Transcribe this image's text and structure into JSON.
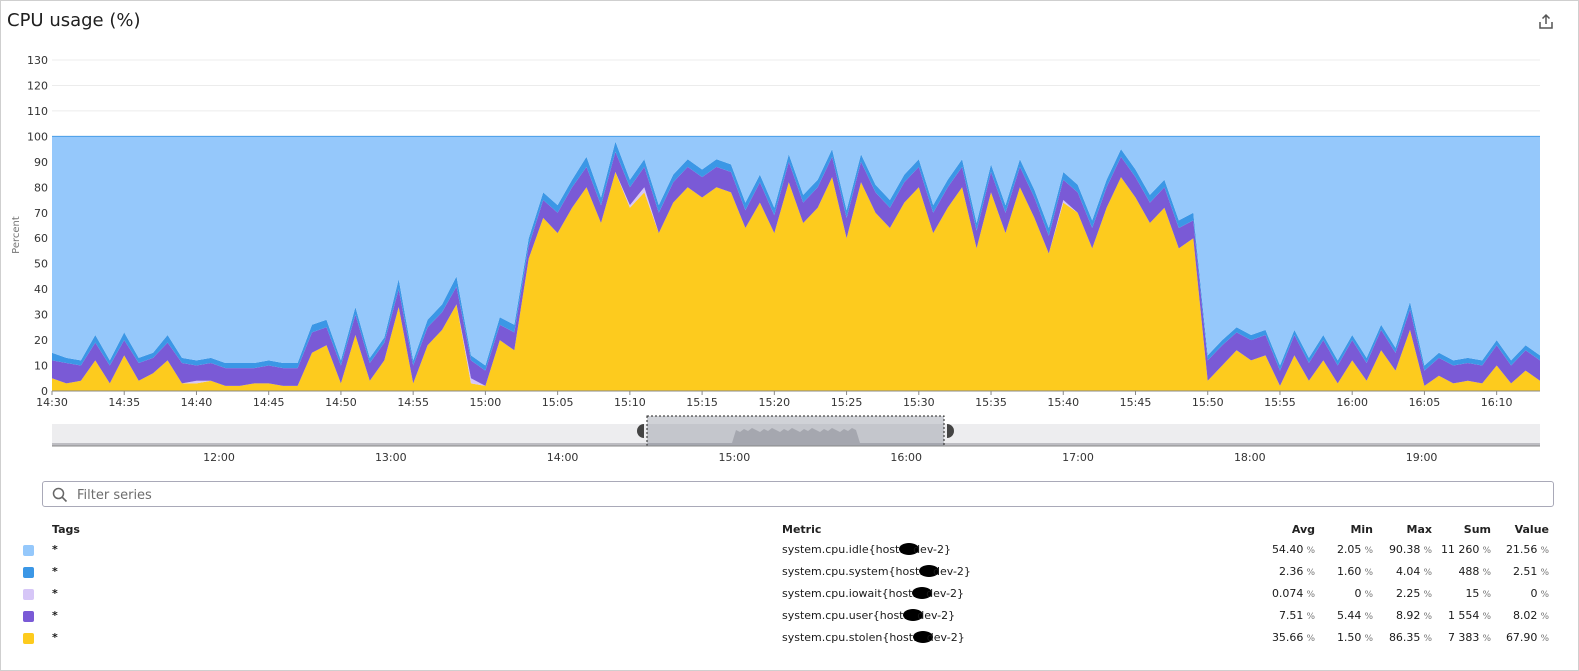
{
  "header": {
    "title": "CPU usage (%)",
    "export_icon": "export-icon"
  },
  "filter": {
    "placeholder": "Filter series",
    "value": ""
  },
  "legend": {
    "headers": {
      "tags": "Tags",
      "metric": "Metric",
      "avg": "Avg",
      "min": "Min",
      "max": "Max",
      "sum": "Sum",
      "value": "Value"
    },
    "unit": "%",
    "rows": [
      {
        "color": "#95c8fb",
        "tag": "*",
        "metric_prefix": "system.cpu.idle{host:",
        "metric_suffix": "dev-2}",
        "avg": "54.40",
        "min": "2.05",
        "max": "90.38",
        "sum": "11 260",
        "value": "21.56"
      },
      {
        "color": "#3b97e6",
        "tag": "*",
        "metric_prefix": "system.cpu.system{host:",
        "metric_suffix": "dev-2}",
        "avg": "2.36",
        "min": "1.60",
        "max": "4.04",
        "sum": "488",
        "value": "2.51"
      },
      {
        "color": "#d6c6f7",
        "tag": "*",
        "metric_prefix": "system.cpu.iowait{host:",
        "metric_suffix": "dev-2}",
        "avg": "0.074",
        "min": "0",
        "max": "2.25",
        "sum": "15",
        "value": "0"
      },
      {
        "color": "#7a5ad6",
        "tag": "*",
        "metric_prefix": "system.cpu.user{host:",
        "metric_suffix": "dev-2}",
        "avg": "7.51",
        "min": "5.44",
        "max": "8.92",
        "sum": "1 554",
        "value": "8.02"
      },
      {
        "color": "#fdcb1e",
        "tag": "*",
        "metric_prefix": "system.cpu.stolen{host:",
        "metric_suffix": "dev-2}",
        "avg": "35.66",
        "min": "1.50",
        "max": "86.35",
        "sum": "7 383",
        "value": "67.90"
      }
    ]
  },
  "navigator": {
    "tick_labels": [
      "12:00",
      "13:00",
      "14:00",
      "15:00",
      "16:00",
      "17:00",
      "18:00",
      "19:00"
    ]
  },
  "chart_data": {
    "type": "area",
    "stacked": true,
    "title": "CPU usage (%)",
    "ylabel": "Percent",
    "xlabel": "",
    "ylim": [
      0,
      130
    ],
    "yticks": [
      0,
      10,
      20,
      30,
      40,
      50,
      60,
      70,
      80,
      90,
      100,
      110,
      120,
      130
    ],
    "xlim": [
      "14:30",
      "16:13"
    ],
    "xtick_labels": [
      "14:30",
      "14:35",
      "14:40",
      "14:45",
      "14:50",
      "14:55",
      "15:00",
      "15:05",
      "15:10",
      "15:15",
      "15:20",
      "15:25",
      "15:30",
      "15:35",
      "15:40",
      "15:45",
      "15:50",
      "15:55",
      "16:00",
      "16:05",
      "16:10"
    ],
    "grid": true,
    "legend": "none",
    "x": [
      "14:30",
      "14:31",
      "14:32",
      "14:33",
      "14:34",
      "14:35",
      "14:36",
      "14:37",
      "14:38",
      "14:39",
      "14:40",
      "14:41",
      "14:42",
      "14:43",
      "14:44",
      "14:45",
      "14:46",
      "14:47",
      "14:48",
      "14:49",
      "14:50",
      "14:51",
      "14:52",
      "14:53",
      "14:54",
      "14:55",
      "14:56",
      "14:57",
      "14:58",
      "14:59",
      "15:00",
      "15:01",
      "15:02",
      "15:03",
      "15:04",
      "15:05",
      "15:06",
      "15:07",
      "15:08",
      "15:09",
      "15:10",
      "15:11",
      "15:12",
      "15:13",
      "15:14",
      "15:15",
      "15:16",
      "15:17",
      "15:18",
      "15:19",
      "15:20",
      "15:21",
      "15:22",
      "15:23",
      "15:24",
      "15:25",
      "15:26",
      "15:27",
      "15:28",
      "15:29",
      "15:30",
      "15:31",
      "15:32",
      "15:33",
      "15:34",
      "15:35",
      "15:36",
      "15:37",
      "15:38",
      "15:39",
      "15:40",
      "15:41",
      "15:42",
      "15:43",
      "15:44",
      "15:45",
      "15:46",
      "15:47",
      "15:48",
      "15:49",
      "15:50",
      "15:51",
      "15:52",
      "15:53",
      "15:54",
      "15:55",
      "15:56",
      "15:57",
      "15:58",
      "15:59",
      "16:00",
      "16:01",
      "16:02",
      "16:03",
      "16:04",
      "16:05",
      "16:06",
      "16:07",
      "16:08",
      "16:09",
      "16:10",
      "16:11",
      "16:12",
      "16:13"
    ],
    "series": [
      {
        "name": "system.cpu.stolen",
        "color": "#fdcb1e",
        "values": [
          5,
          3,
          4,
          12,
          3,
          14,
          4,
          7,
          12,
          3,
          3,
          4,
          2,
          2,
          3,
          3,
          2,
          2,
          15,
          18,
          3,
          22,
          4,
          12,
          33,
          3,
          18,
          24,
          34,
          3,
          2,
          20,
          16,
          52,
          68,
          62,
          72,
          80,
          66,
          86,
          72,
          78,
          62,
          74,
          80,
          76,
          80,
          78,
          64,
          74,
          62,
          82,
          66,
          72,
          84,
          60,
          82,
          70,
          64,
          74,
          80,
          62,
          72,
          80,
          56,
          78,
          62,
          80,
          68,
          54,
          74,
          70,
          56,
          72,
          84,
          76,
          66,
          72,
          56,
          60,
          4,
          10,
          16,
          12,
          14,
          2,
          14,
          4,
          12,
          3,
          12,
          4,
          16,
          8,
          24,
          2,
          6,
          3,
          4,
          3,
          10,
          3,
          8,
          4
        ]
      },
      {
        "name": "system.cpu.iowait",
        "color": "#d6c6f7",
        "values": [
          0,
          0,
          0,
          0,
          0,
          0,
          0,
          0,
          0,
          0,
          1,
          0,
          0,
          0,
          0,
          0,
          0,
          0,
          0,
          0,
          0,
          0,
          0,
          0,
          0,
          0,
          0,
          0,
          0,
          2,
          0,
          0,
          0,
          0,
          0,
          0,
          0,
          0,
          0,
          0,
          1,
          2,
          0,
          0,
          0,
          0,
          0,
          0,
          0,
          0,
          0,
          0,
          0,
          0,
          0,
          0,
          0,
          0,
          0,
          0,
          0,
          0,
          0,
          0,
          0,
          0,
          0,
          0,
          0,
          0,
          1,
          0,
          0,
          0,
          0,
          0,
          0,
          0,
          0,
          0,
          0,
          0,
          0,
          0,
          0,
          0,
          0,
          0,
          0,
          0,
          0,
          0,
          0,
          0,
          0,
          0,
          0,
          0,
          0,
          0,
          0,
          0,
          0,
          0
        ]
      },
      {
        "name": "system.cpu.user",
        "color": "#7a5ad6",
        "values": [
          7,
          8,
          6,
          7,
          7,
          6,
          7,
          6,
          7,
          8,
          6,
          7,
          7,
          7,
          6,
          7,
          7,
          7,
          8,
          7,
          7,
          8,
          7,
          7,
          7,
          7,
          7,
          7,
          7,
          7,
          6,
          6,
          7,
          5,
          7,
          8,
          8,
          8,
          7,
          8,
          7,
          8,
          8,
          8,
          8,
          8,
          8,
          8,
          7,
          8,
          7,
          8,
          8,
          8,
          8,
          8,
          8,
          8,
          8,
          8,
          8,
          8,
          8,
          8,
          7,
          8,
          8,
          8,
          8,
          7,
          8,
          8,
          8,
          8,
          8,
          8,
          8,
          8,
          8,
          7,
          8,
          8,
          7,
          8,
          8,
          6,
          8,
          7,
          8,
          7,
          8,
          7,
          8,
          7,
          8,
          6,
          7,
          7,
          7,
          7,
          8,
          7,
          8,
          8
        ]
      },
      {
        "name": "system.cpu.system",
        "color": "#3b97e6",
        "values": [
          3,
          2,
          2,
          3,
          2,
          3,
          2,
          2,
          3,
          2,
          2,
          2,
          2,
          2,
          2,
          2,
          2,
          2,
          3,
          3,
          2,
          3,
          2,
          2,
          4,
          2,
          3,
          3,
          4,
          2,
          2,
          3,
          3,
          3,
          3,
          3,
          3,
          4,
          3,
          4,
          3,
          3,
          3,
          3,
          3,
          3,
          3,
          3,
          3,
          3,
          3,
          3,
          3,
          3,
          3,
          3,
          3,
          3,
          3,
          3,
          3,
          3,
          3,
          3,
          3,
          3,
          3,
          3,
          3,
          3,
          3,
          3,
          3,
          3,
          3,
          3,
          3,
          3,
          3,
          3,
          2,
          2,
          2,
          2,
          2,
          2,
          2,
          2,
          2,
          2,
          2,
          2,
          2,
          2,
          3,
          2,
          2,
          2,
          2,
          2,
          2,
          2,
          2,
          2
        ]
      },
      {
        "name": "system.cpu.idle",
        "color": "#95c8fb",
        "values": [
          85,
          87,
          88,
          78,
          88,
          77,
          87,
          85,
          78,
          87,
          88,
          87,
          89,
          89,
          89,
          88,
          89,
          89,
          74,
          72,
          88,
          67,
          87,
          79,
          56,
          88,
          72,
          66,
          55,
          86,
          90,
          71,
          74,
          40,
          22,
          27,
          17,
          8,
          24,
          2,
          17,
          9,
          27,
          15,
          9,
          13,
          9,
          11,
          26,
          15,
          28,
          7,
          23,
          17,
          5,
          29,
          7,
          19,
          25,
          15,
          9,
          27,
          17,
          9,
          34,
          11,
          27,
          9,
          21,
          36,
          14,
          19,
          33,
          17,
          5,
          13,
          23,
          17,
          33,
          30,
          86,
          80,
          75,
          78,
          76,
          90,
          76,
          87,
          78,
          88,
          78,
          87,
          74,
          83,
          65,
          90,
          85,
          88,
          87,
          88,
          80,
          88,
          82,
          86
        ]
      }
    ]
  }
}
